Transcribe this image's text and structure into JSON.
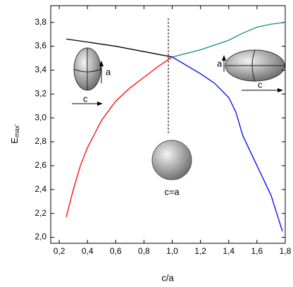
{
  "chart_data": {
    "type": "line",
    "x_label": "c/a",
    "y_label": "E",
    "y_label_sub": "max'",
    "xlim": [
      0.14,
      1.8
    ],
    "ylim": [
      1.95,
      3.94
    ],
    "xticks": [
      {
        "value": 0.2,
        "label": "0,2"
      },
      {
        "value": 0.4,
        "label": "0,4"
      },
      {
        "value": 0.6,
        "label": "0,6"
      },
      {
        "value": 0.8,
        "label": "0,8"
      },
      {
        "value": 1.0,
        "label": "1,0"
      },
      {
        "value": 1.2,
        "label": "1,2"
      },
      {
        "value": 1.4,
        "label": "1,4"
      },
      {
        "value": 1.6,
        "label": "1,6"
      },
      {
        "value": 1.8,
        "label": "1,8"
      }
    ],
    "yticks": [
      {
        "value": 2.0,
        "label": "2,0"
      },
      {
        "value": 2.2,
        "label": "2,2"
      },
      {
        "value": 2.4,
        "label": "2,4"
      },
      {
        "value": 2.6,
        "label": "2,6"
      },
      {
        "value": 2.8,
        "label": "2,8"
      },
      {
        "value": 3.0,
        "label": "3,0"
      },
      {
        "value": 3.2,
        "label": "3,2"
      },
      {
        "value": 3.4,
        "label": "3,4"
      },
      {
        "value": 3.6,
        "label": "3,6"
      },
      {
        "value": 3.8,
        "label": "3,8"
      }
    ],
    "series": [
      {
        "color": "#000000",
        "x": [
          0.25,
          0.4,
          0.6,
          0.8,
          1.0
        ],
        "values": [
          3.66,
          3.635,
          3.6,
          3.555,
          3.51
        ]
      },
      {
        "color": "#1a8a80",
        "x": [
          1.0,
          1.2,
          1.4,
          1.5,
          1.6,
          1.7,
          1.8
        ],
        "values": [
          3.51,
          3.57,
          3.65,
          3.71,
          3.76,
          3.785,
          3.8
        ]
      },
      {
        "color": "#ff0000",
        "x": [
          0.25,
          0.3,
          0.35,
          0.4,
          0.5,
          0.6,
          0.7,
          0.8,
          0.9,
          1.0
        ],
        "values": [
          2.17,
          2.4,
          2.6,
          2.75,
          2.98,
          3.14,
          3.25,
          3.34,
          3.43,
          3.51
        ]
      },
      {
        "color": "#0000ff",
        "x": [
          1.0,
          1.1,
          1.2,
          1.3,
          1.4,
          1.45,
          1.5,
          1.6,
          1.7,
          1.78
        ],
        "values": [
          3.51,
          3.44,
          3.37,
          3.29,
          3.17,
          3.05,
          2.85,
          2.6,
          2.35,
          2.05
        ]
      }
    ],
    "annotations": [
      "a",
      "c",
      "a",
      "c",
      "c=a"
    ]
  }
}
